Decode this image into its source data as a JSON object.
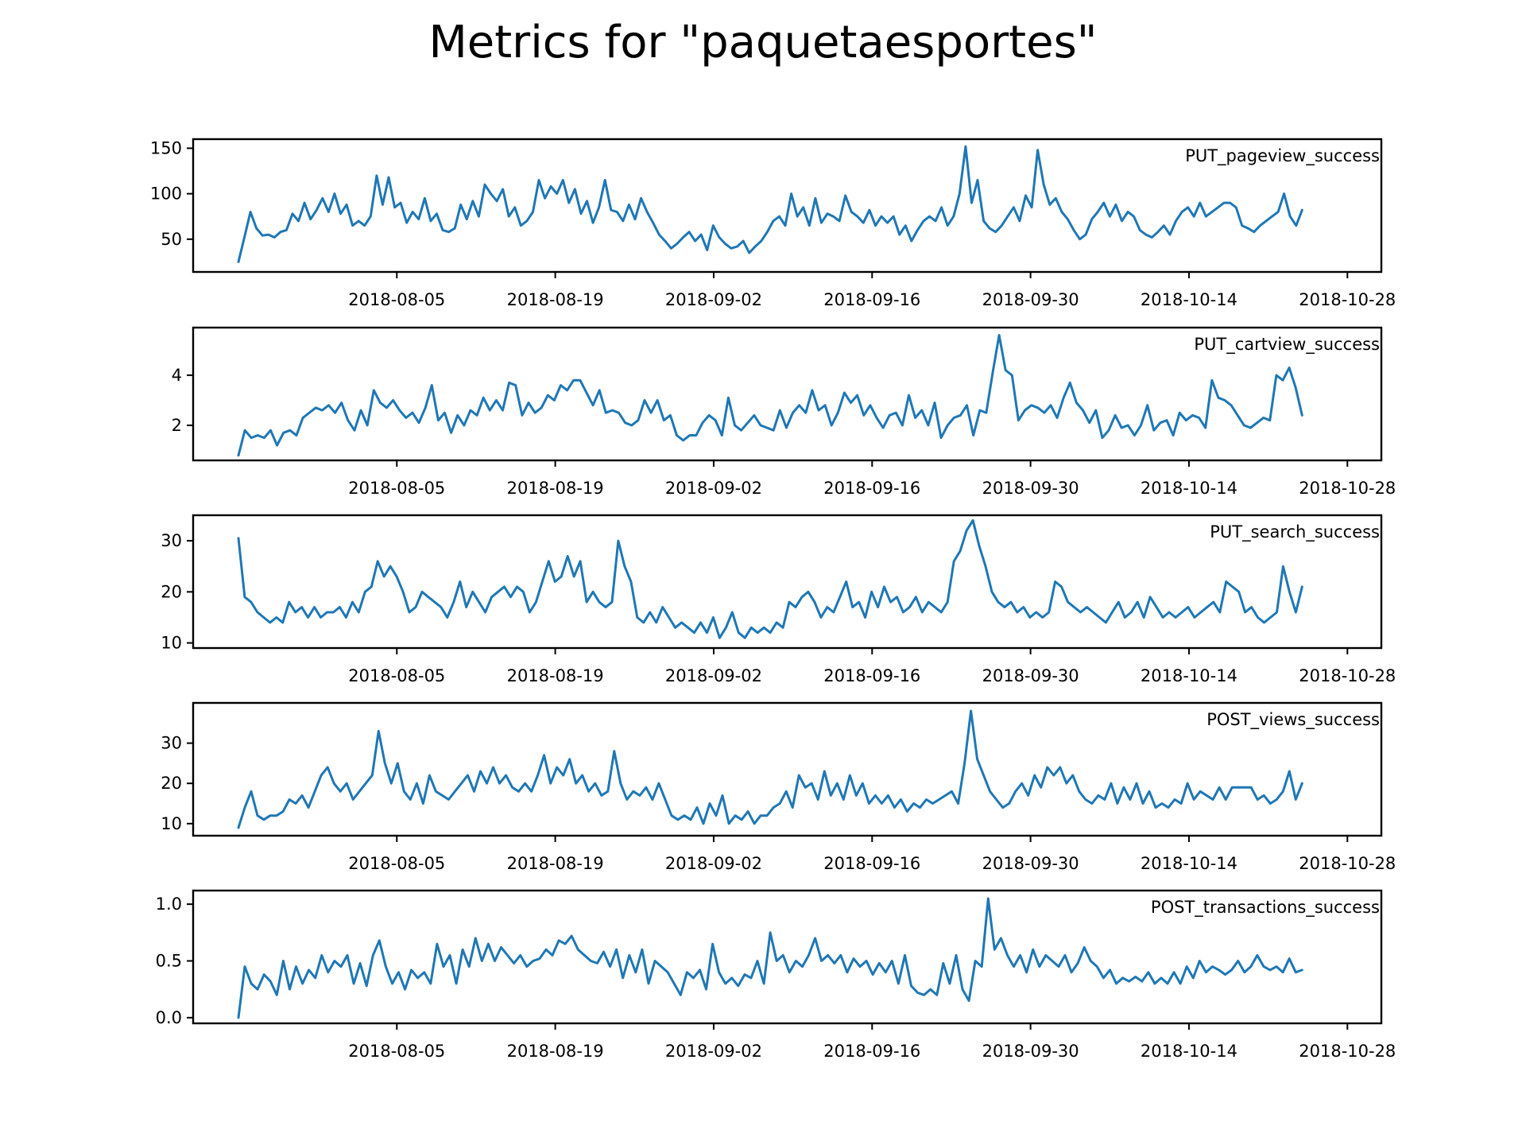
{
  "figure": {
    "title": "Metrics for \"paquetaesportes\"",
    "line_color": "#1f77b4"
  },
  "chart_data": [
    {
      "type": "line",
      "title": "PUT_pageview_success",
      "xlabel": "",
      "ylabel": "",
      "x_range": [
        "2018-07-22",
        "2018-10-24"
      ],
      "xlim": [
        "2018-07-18",
        "2018-10-31"
      ],
      "ylim": [
        14,
        160
      ],
      "yticks": [
        50,
        100,
        150
      ],
      "xticks": [
        "2018-08-05",
        "2018-08-19",
        "2018-09-02",
        "2018-09-16",
        "2018-09-30",
        "2018-10-14",
        "2018-10-28"
      ],
      "grid": false,
      "values": [
        25,
        52,
        80,
        62,
        54,
        55,
        52,
        58,
        60,
        78,
        70,
        90,
        72,
        82,
        95,
        80,
        100,
        78,
        88,
        65,
        70,
        65,
        75,
        120,
        88,
        118,
        85,
        90,
        68,
        80,
        72,
        95,
        70,
        78,
        60,
        58,
        62,
        88,
        72,
        92,
        75,
        110,
        100,
        92,
        105,
        75,
        85,
        65,
        70,
        80,
        115,
        95,
        108,
        100,
        115,
        90,
        105,
        78,
        92,
        68,
        85,
        115,
        82,
        80,
        70,
        88,
        72,
        95,
        80,
        68,
        55,
        48,
        40,
        45,
        52,
        58,
        48,
        55,
        38,
        65,
        52,
        45,
        40,
        42,
        48,
        35,
        42,
        48,
        58,
        70,
        75,
        65,
        100,
        75,
        85,
        65,
        95,
        68,
        78,
        75,
        70,
        98,
        80,
        75,
        68,
        82,
        65,
        75,
        68,
        75,
        55,
        65,
        48,
        60,
        70,
        75,
        70,
        85,
        65,
        75,
        100,
        152,
        90,
        115,
        70,
        62,
        58,
        65,
        75,
        85,
        70,
        98,
        85,
        148,
        110,
        88,
        95,
        80,
        72,
        60,
        50,
        55,
        72,
        80,
        90,
        75,
        88,
        70,
        80,
        75,
        60,
        55,
        52,
        58,
        65,
        55,
        70,
        80,
        85,
        75,
        90,
        75,
        80,
        85,
        90,
        90,
        85,
        65,
        62,
        58,
        65,
        70,
        75,
        80,
        100,
        75,
        65,
        82
      ]
    },
    {
      "type": "line",
      "title": "PUT_cartview_success",
      "xlabel": "",
      "ylabel": "",
      "x_range": [
        "2018-07-22",
        "2018-10-24"
      ],
      "xlim": [
        "2018-07-18",
        "2018-10-31"
      ],
      "ylim": [
        0.6,
        5.9
      ],
      "yticks": [
        2,
        4
      ],
      "xticks": [
        "2018-08-05",
        "2018-08-19",
        "2018-09-02",
        "2018-09-16",
        "2018-09-30",
        "2018-10-14",
        "2018-10-28"
      ],
      "grid": false,
      "values": [
        0.8,
        1.8,
        1.5,
        1.6,
        1.5,
        1.8,
        1.2,
        1.7,
        1.8,
        1.6,
        2.3,
        2.5,
        2.7,
        2.6,
        2.8,
        2.5,
        2.9,
        2.2,
        1.8,
        2.6,
        2.0,
        3.4,
        2.9,
        2.7,
        3.0,
        2.6,
        2.3,
        2.5,
        2.1,
        2.7,
        3.6,
        2.2,
        2.5,
        1.7,
        2.4,
        2.0,
        2.6,
        2.4,
        3.1,
        2.6,
        3.0,
        2.6,
        3.7,
        3.6,
        2.4,
        2.9,
        2.5,
        2.7,
        3.2,
        3.0,
        3.6,
        3.4,
        3.8,
        3.8,
        3.3,
        2.8,
        3.4,
        2.5,
        2.6,
        2.5,
        2.1,
        2.0,
        2.2,
        3.0,
        2.5,
        3.0,
        2.2,
        2.4,
        1.6,
        1.4,
        1.6,
        1.6,
        2.1,
        2.4,
        2.2,
        1.6,
        3.1,
        2.0,
        1.8,
        2.1,
        2.4,
        2.0,
        1.9,
        1.8,
        2.6,
        1.9,
        2.5,
        2.8,
        2.5,
        3.4,
        2.6,
        2.8,
        2.0,
        2.5,
        3.3,
        2.9,
        3.2,
        2.4,
        2.8,
        2.3,
        1.9,
        2.4,
        2.5,
        2.0,
        3.2,
        2.3,
        2.6,
        2.0,
        2.9,
        1.5,
        2.0,
        2.3,
        2.4,
        2.8,
        1.6,
        2.6,
        2.5,
        4.1,
        5.6,
        4.2,
        4.0,
        2.2,
        2.6,
        2.8,
        2.7,
        2.5,
        2.8,
        2.3,
        3.1,
        3.7,
        2.9,
        2.6,
        2.1,
        2.6,
        1.5,
        1.8,
        2.4,
        1.9,
        2.0,
        1.6,
        2.0,
        2.8,
        1.8,
        2.1,
        2.2,
        1.6,
        2.5,
        2.2,
        2.4,
        2.3,
        1.9,
        3.8,
        3.1,
        3.0,
        2.8,
        2.4,
        2.0,
        1.9,
        2.1,
        2.3,
        2.2,
        4.0,
        3.8,
        4.3,
        3.5,
        2.4
      ]
    },
    {
      "type": "line",
      "title": "PUT_search_success",
      "xlabel": "",
      "ylabel": "",
      "x_range": [
        "2018-07-22",
        "2018-10-24"
      ],
      "xlim": [
        "2018-07-18",
        "2018-10-31"
      ],
      "ylim": [
        9,
        35
      ],
      "yticks": [
        10,
        20,
        30
      ],
      "xticks": [
        "2018-08-05",
        "2018-08-19",
        "2018-09-02",
        "2018-09-16",
        "2018-09-30",
        "2018-10-14",
        "2018-10-28"
      ],
      "grid": false,
      "values": [
        30.5,
        19,
        18,
        16,
        15,
        14,
        15,
        14,
        18,
        16,
        17,
        15,
        17,
        15,
        16,
        16,
        17,
        15,
        18,
        16,
        20,
        21,
        26,
        23,
        25,
        23,
        20,
        16,
        17,
        20,
        19,
        18,
        17,
        15,
        18,
        22,
        17,
        20,
        18,
        16,
        19,
        20,
        21,
        19,
        21,
        20,
        16,
        18,
        22,
        26,
        22,
        23,
        27,
        23,
        26,
        18,
        20,
        18,
        17,
        18,
        30,
        25,
        22,
        15,
        14,
        16,
        14,
        17,
        15,
        13,
        14,
        13,
        12,
        14,
        12,
        15,
        11,
        13,
        16,
        12,
        11,
        13,
        12,
        13,
        12,
        14,
        13,
        18,
        17,
        19,
        20,
        18,
        15,
        17,
        16,
        19,
        22,
        17,
        18,
        15,
        20,
        17,
        21,
        18,
        19,
        16,
        17,
        19,
        16,
        18,
        17,
        16,
        18,
        26,
        28,
        32,
        34,
        29,
        25,
        20,
        18,
        17,
        18,
        16,
        17,
        15,
        16,
        15,
        16,
        22,
        21,
        18,
        17,
        16,
        17,
        16,
        15,
        14,
        16,
        18,
        15,
        16,
        18,
        15,
        19,
        17,
        15,
        16,
        15,
        16,
        17,
        15,
        16,
        17,
        18,
        16,
        22,
        21,
        20,
        16,
        17,
        15,
        14,
        15,
        16,
        25,
        20,
        16,
        21
      ]
    },
    {
      "type": "line",
      "title": "POST_views_success",
      "xlabel": "",
      "ylabel": "",
      "x_range": [
        "2018-07-22",
        "2018-10-24"
      ],
      "xlim": [
        "2018-07-18",
        "2018-10-31"
      ],
      "ylim": [
        7,
        40
      ],
      "yticks": [
        10,
        20,
        30
      ],
      "xticks": [
        "2018-08-05",
        "2018-08-19",
        "2018-09-02",
        "2018-09-16",
        "2018-09-30",
        "2018-10-14",
        "2018-10-28"
      ],
      "grid": false,
      "values": [
        9,
        14,
        18,
        12,
        11,
        12,
        12,
        13,
        16,
        15,
        17,
        14,
        18,
        22,
        24,
        20,
        18,
        20,
        16,
        18,
        20,
        22,
        33,
        25,
        20,
        25,
        18,
        16,
        20,
        15,
        22,
        18,
        17,
        16,
        18,
        20,
        22,
        18,
        23,
        20,
        24,
        20,
        22,
        19,
        18,
        20,
        18,
        22,
        27,
        20,
        24,
        22,
        26,
        20,
        22,
        18,
        20,
        17,
        18,
        28,
        20,
        16,
        18,
        17,
        19,
        16,
        20,
        16,
        12,
        11,
        12,
        11,
        14,
        10,
        15,
        12,
        17,
        10,
        12,
        11,
        13,
        10,
        12,
        12,
        14,
        15,
        18,
        14,
        22,
        19,
        20,
        16,
        23,
        17,
        20,
        16,
        22,
        17,
        20,
        15,
        17,
        15,
        17,
        14,
        16,
        13,
        15,
        14,
        16,
        15,
        16,
        17,
        18,
        15,
        25,
        38,
        26,
        22,
        18,
        16,
        14,
        15,
        18,
        20,
        17,
        22,
        19,
        24,
        22,
        24,
        20,
        22,
        18,
        16,
        15,
        17,
        16,
        20,
        15,
        19,
        16,
        20,
        15,
        18,
        14,
        15,
        14,
        16,
        15,
        20,
        16,
        18,
        17,
        16,
        19,
        16,
        19,
        19,
        19,
        19,
        16,
        17,
        15,
        16,
        18,
        23,
        16,
        20
      ]
    },
    {
      "type": "line",
      "title": "POST_transactions_success",
      "xlabel": "",
      "ylabel": "",
      "x_range": [
        "2018-07-22",
        "2018-10-24"
      ],
      "xlim": [
        "2018-07-18",
        "2018-10-31"
      ],
      "ylim": [
        -0.05,
        1.12
      ],
      "yticks": [
        0.0,
        0.5,
        1.0
      ],
      "xticks": [
        "2018-08-05",
        "2018-08-19",
        "2018-09-02",
        "2018-09-16",
        "2018-09-30",
        "2018-10-14",
        "2018-10-28"
      ],
      "grid": false,
      "values": [
        0.0,
        0.45,
        0.3,
        0.25,
        0.38,
        0.32,
        0.2,
        0.5,
        0.25,
        0.45,
        0.3,
        0.42,
        0.35,
        0.55,
        0.4,
        0.5,
        0.45,
        0.55,
        0.3,
        0.48,
        0.28,
        0.55,
        0.68,
        0.45,
        0.3,
        0.4,
        0.25,
        0.42,
        0.35,
        0.4,
        0.3,
        0.65,
        0.45,
        0.55,
        0.3,
        0.6,
        0.45,
        0.7,
        0.5,
        0.65,
        0.5,
        0.62,
        0.55,
        0.48,
        0.55,
        0.45,
        0.5,
        0.52,
        0.6,
        0.55,
        0.68,
        0.65,
        0.72,
        0.6,
        0.55,
        0.5,
        0.48,
        0.58,
        0.45,
        0.6,
        0.35,
        0.55,
        0.4,
        0.6,
        0.3,
        0.5,
        0.45,
        0.4,
        0.3,
        0.2,
        0.4,
        0.35,
        0.42,
        0.25,
        0.65,
        0.4,
        0.3,
        0.35,
        0.28,
        0.38,
        0.35,
        0.5,
        0.3,
        0.75,
        0.5,
        0.55,
        0.4,
        0.5,
        0.45,
        0.55,
        0.7,
        0.5,
        0.55,
        0.48,
        0.55,
        0.4,
        0.52,
        0.45,
        0.5,
        0.38,
        0.48,
        0.4,
        0.5,
        0.3,
        0.55,
        0.28,
        0.22,
        0.2,
        0.25,
        0.2,
        0.48,
        0.3,
        0.55,
        0.25,
        0.15,
        0.5,
        0.45,
        1.05,
        0.6,
        0.7,
        0.55,
        0.45,
        0.55,
        0.4,
        0.6,
        0.45,
        0.55,
        0.5,
        0.45,
        0.55,
        0.4,
        0.48,
        0.62,
        0.5,
        0.45,
        0.35,
        0.42,
        0.3,
        0.35,
        0.32,
        0.36,
        0.32,
        0.4,
        0.3,
        0.35,
        0.3,
        0.4,
        0.3,
        0.45,
        0.35,
        0.5,
        0.4,
        0.45,
        0.42,
        0.38,
        0.42,
        0.5,
        0.4,
        0.45,
        0.55,
        0.45,
        0.42,
        0.45,
        0.4,
        0.52,
        0.4,
        0.42
      ]
    }
  ]
}
